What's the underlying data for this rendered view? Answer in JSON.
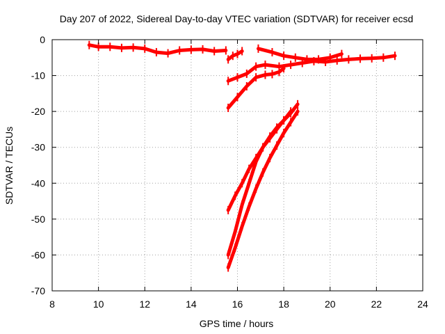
{
  "chart_data": {
    "type": "line",
    "title": "Day 207 of 2022, Sidereal Day-to-day VTEC variation (SDTVAR) for receiver ecsd",
    "xlabel": "GPS time / hours",
    "ylabel": "SDTVAR / TECUs",
    "xlim": [
      8,
      24
    ],
    "ylim": [
      -70,
      0
    ],
    "xticks": [
      8,
      10,
      12,
      14,
      16,
      18,
      20,
      22,
      24
    ],
    "yticks": [
      0,
      -10,
      -20,
      -30,
      -40,
      -50,
      -60,
      -70
    ],
    "grid": true,
    "legend": "none",
    "color": "#ff0000",
    "series": [
      {
        "x": [
          9.6,
          10.0,
          10.5,
          11.0,
          11.5,
          12.0,
          12.5,
          13.0,
          13.5,
          14.0,
          14.5,
          15.0,
          15.5
        ],
        "y": [
          -1.5,
          -2.0,
          -2.0,
          -2.3,
          -2.2,
          -2.5,
          -3.5,
          -3.8,
          -3.0,
          -2.8,
          -2.7,
          -3.2,
          -3.0
        ]
      },
      {
        "x": [
          15.6,
          15.8,
          16.0,
          16.2
        ],
        "y": [
          -5.5,
          -4.5,
          -4.0,
          -3.2
        ]
      },
      {
        "x": [
          16.9,
          17.5,
          18.0,
          18.5,
          19.0,
          19.5,
          20.0,
          20.5
        ],
        "y": [
          -2.5,
          -3.5,
          -4.5,
          -5.0,
          -5.5,
          -5.5,
          -5.0,
          -4.0
        ]
      },
      {
        "x": [
          15.6,
          16.0,
          16.4,
          16.8,
          17.2,
          17.8,
          18.3,
          18.8,
          19.3,
          19.8,
          20.3,
          20.8,
          21.3,
          21.8,
          22.3,
          22.8
        ],
        "y": [
          -11.5,
          -10.5,
          -9.5,
          -7.5,
          -7.0,
          -7.5,
          -7.0,
          -6.5,
          -6.0,
          -6.2,
          -5.8,
          -5.5,
          -5.3,
          -5.2,
          -5.0,
          -4.5
        ]
      },
      {
        "x": [
          15.6,
          16.0,
          16.4,
          16.8,
          17.2,
          17.5,
          17.8,
          18.0
        ],
        "y": [
          -19,
          -16,
          -13,
          -10.5,
          -9.8,
          -9.6,
          -9.0,
          -8.0
        ]
      },
      {
        "x": [
          15.6,
          15.9,
          16.2,
          16.5,
          16.8,
          17.1,
          17.4,
          17.7,
          18.0,
          18.3,
          18.6
        ],
        "y": [
          -47.5,
          -43.5,
          -40,
          -36,
          -33,
          -30,
          -27.5,
          -25,
          -22.5,
          -20.5,
          -18.0
        ]
      },
      {
        "x": [
          15.6,
          15.9,
          16.2,
          16.5,
          16.8,
          17.1,
          17.4,
          17.7,
          18.0,
          18.3
        ],
        "y": [
          -60,
          -53.5,
          -46,
          -40,
          -34,
          -30,
          -27,
          -24.5,
          -22.5,
          -20.0
        ]
      },
      {
        "x": [
          15.6,
          15.9,
          16.2,
          16.5,
          16.8,
          17.1,
          17.4,
          17.7,
          18.0,
          18.3,
          18.6
        ],
        "y": [
          -63.5,
          -58,
          -52,
          -46.5,
          -41.5,
          -37,
          -33,
          -29.5,
          -26,
          -23,
          -20.0
        ]
      }
    ]
  }
}
